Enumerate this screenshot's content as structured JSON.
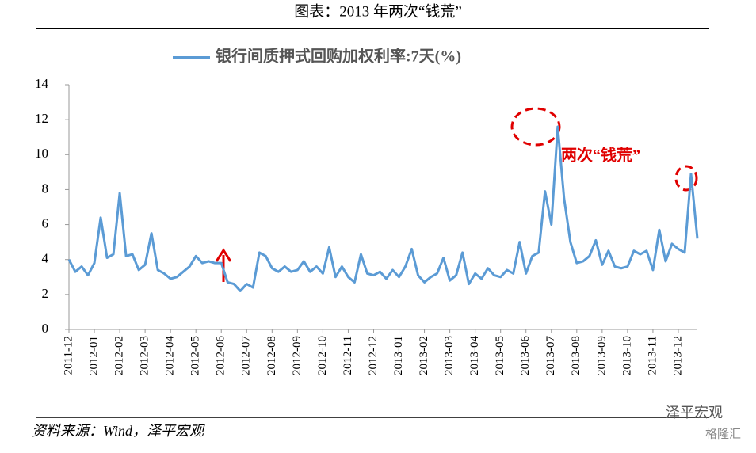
{
  "chart_data": {
    "type": "line",
    "title": "图表：2013 年两次“钱荒”",
    "annotation": "两次“钱荒”",
    "source": "资料来源：Wind，泽平宏观",
    "watermark": "泽平宏观",
    "watermark2": "格隆汇",
    "categories": [
      "2011-12",
      null,
      null,
      null,
      "2012-01",
      null,
      null,
      null,
      "2012-02",
      null,
      null,
      null,
      "2012-03",
      null,
      null,
      null,
      "2012-04",
      null,
      null,
      null,
      "2012-05",
      null,
      null,
      null,
      "2012-06",
      null,
      null,
      null,
      "2012-07",
      null,
      null,
      null,
      "2012-08",
      null,
      null,
      null,
      "2012-09",
      null,
      null,
      null,
      "2012-10",
      null,
      null,
      null,
      "2012-11",
      null,
      null,
      null,
      "2012-12",
      null,
      null,
      null,
      "2013-01",
      null,
      null,
      null,
      "2013-02",
      null,
      null,
      null,
      "2013-03",
      null,
      null,
      null,
      "2013-04",
      null,
      null,
      null,
      "2013-05",
      null,
      null,
      null,
      "2013-06",
      null,
      null,
      null,
      "2013-07",
      null,
      null,
      null,
      "2013-08",
      null,
      null,
      null,
      "2013-09",
      null,
      null,
      null,
      "2013-10",
      null,
      null,
      null,
      "2013-11",
      null,
      null,
      null,
      "2013-12",
      null,
      null,
      null
    ],
    "series": [
      {
        "name": "银行间质押式回购加权利率:7天(%)",
        "color": "#5b9bd5",
        "values": [
          4.0,
          3.3,
          3.6,
          3.1,
          3.8,
          6.4,
          4.1,
          4.3,
          7.8,
          4.2,
          4.3,
          3.4,
          3.7,
          5.5,
          3.4,
          3.2,
          2.9,
          3.0,
          3.3,
          3.6,
          4.2,
          3.8,
          3.9,
          3.8,
          3.8,
          2.7,
          2.6,
          2.2,
          2.6,
          2.4,
          4.4,
          4.2,
          3.5,
          3.3,
          3.6,
          3.3,
          3.4,
          3.9,
          3.3,
          3.6,
          3.2,
          4.7,
          3.0,
          3.6,
          3.0,
          2.7,
          4.3,
          3.2,
          3.1,
          3.3,
          2.9,
          3.4,
          3.0,
          3.6,
          4.6,
          3.1,
          2.7,
          3.0,
          3.2,
          4.1,
          2.8,
          3.1,
          4.4,
          2.6,
          3.2,
          2.9,
          3.5,
          3.1,
          3.0,
          3.4,
          3.2,
          5.0,
          3.2,
          4.2,
          4.4,
          7.9,
          6.0,
          11.6,
          7.5,
          5.0,
          3.8,
          3.9,
          4.2,
          5.1,
          3.7,
          4.5,
          3.6,
          3.5,
          3.6,
          4.5,
          4.3,
          4.5,
          3.4,
          5.7,
          3.9,
          4.9,
          4.6,
          4.4,
          8.9,
          5.2
        ]
      }
    ],
    "ylim": [
      0,
      14
    ],
    "yticks": [
      0,
      2,
      4,
      6,
      8,
      10,
      12,
      14
    ],
    "legend": "top"
  }
}
